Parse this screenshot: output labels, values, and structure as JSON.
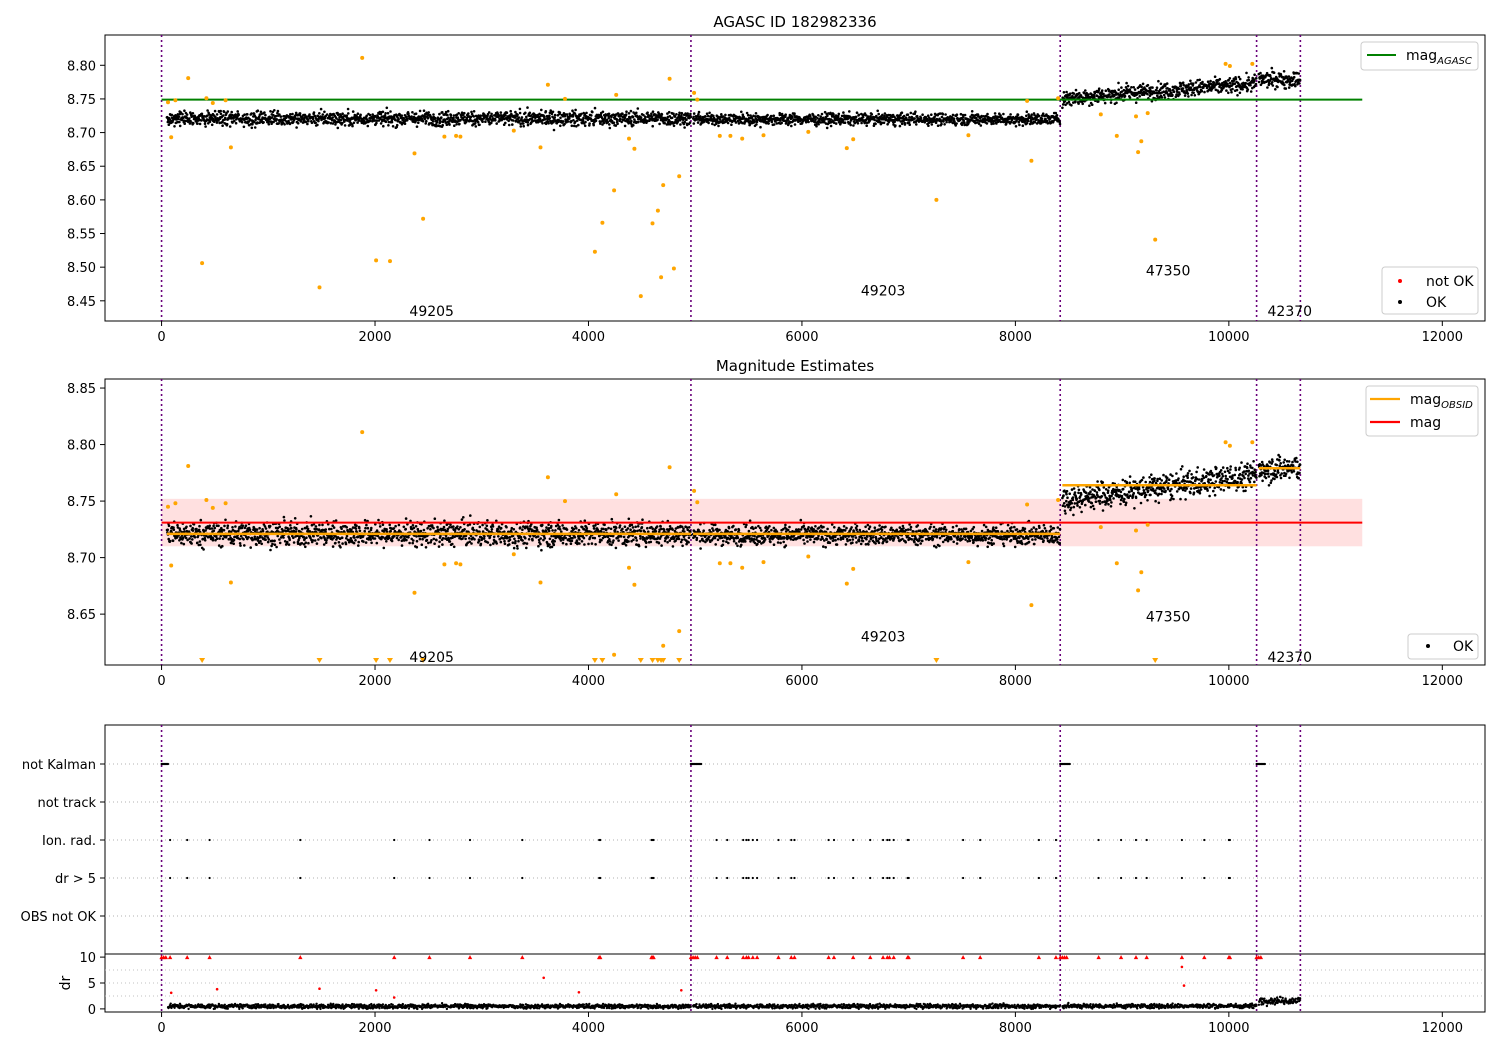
{
  "chart_data": [
    {
      "type": "scatter",
      "title": "AGASC ID 182982336",
      "xlim": [
        -530,
        12400
      ],
      "ylim": [
        8.42,
        8.845
      ],
      "x_ticks": [
        0,
        2000,
        4000,
        6000,
        8000,
        10000,
        12000
      ],
      "y_ticks": [
        8.45,
        8.5,
        8.55,
        8.6,
        8.65,
        8.7,
        8.75,
        8.8
      ],
      "grid": false,
      "observation_boundaries": [
        0,
        4960,
        8420,
        10260,
        10670
      ],
      "obsid_labels": [
        {
          "text": "49205",
          "x": 2250,
          "y": 8.435
        },
        {
          "text": "49203",
          "x": 6480,
          "y": 8.465
        },
        {
          "text": "47350",
          "x": 9150,
          "y": 8.495
        },
        {
          "text": "42370",
          "x": 10290,
          "y": 8.435
        }
      ],
      "reference_lines": [
        {
          "name": "mag_AGASC",
          "y": 8.749,
          "x": [
            0,
            11250
          ],
          "color": "#008000"
        }
      ],
      "segments": [
        {
          "x": [
            50,
            4960
          ],
          "level": 8.721,
          "spread": 0.01
        },
        {
          "x": [
            4980,
            8420
          ],
          "level": 8.72,
          "spread": 0.008
        },
        {
          "x": [
            8440,
            10260
          ],
          "level": 8.763,
          "spread": 0.011
        },
        {
          "x": [
            10280,
            10670
          ],
          "level": 8.779,
          "spread": 0.011
        }
      ],
      "series": [
        {
          "name": "not OK",
          "marker": "dot",
          "color": "#ff0000",
          "points": []
        },
        {
          "name": "OK",
          "marker": "dot",
          "color": "#000000",
          "points": "dense per-frame track following segments"
        },
        {
          "name": "flagged",
          "marker": "dot",
          "color": "#ffa500",
          "points": [
            [
              60,
              8.745
            ],
            [
              90,
              8.693
            ],
            [
              130,
              8.748
            ],
            [
              250,
              8.781
            ],
            [
              380,
              8.506
            ],
            [
              420,
              8.751
            ],
            [
              480,
              8.744
            ],
            [
              600,
              8.748
            ],
            [
              650,
              8.678
            ],
            [
              1480,
              8.47
            ],
            [
              1880,
              8.811
            ],
            [
              2010,
              8.51
            ],
            [
              2140,
              8.509
            ],
            [
              2370,
              8.669
            ],
            [
              2450,
              8.572
            ],
            [
              2650,
              8.694
            ],
            [
              2760,
              8.695
            ],
            [
              2800,
              8.694
            ],
            [
              3300,
              8.703
            ],
            [
              3550,
              8.678
            ],
            [
              3620,
              8.771
            ],
            [
              3780,
              8.75
            ],
            [
              4060,
              8.523
            ],
            [
              4130,
              8.566
            ],
            [
              4240,
              8.614
            ],
            [
              4260,
              8.756
            ],
            [
              4380,
              8.691
            ],
            [
              4430,
              8.676
            ],
            [
              4490,
              8.457
            ],
            [
              4600,
              8.565
            ],
            [
              4650,
              8.584
            ],
            [
              4680,
              8.485
            ],
            [
              4700,
              8.622
            ],
            [
              4760,
              8.78
            ],
            [
              4800,
              8.498
            ],
            [
              4850,
              8.635
            ],
            [
              4990,
              8.759
            ],
            [
              5020,
              8.749
            ],
            [
              5230,
              8.695
            ],
            [
              5330,
              8.695
            ],
            [
              5440,
              8.691
            ],
            [
              5640,
              8.696
            ],
            [
              6060,
              8.701
            ],
            [
              6420,
              8.677
            ],
            [
              6480,
              8.69
            ],
            [
              7260,
              8.6
            ],
            [
              7560,
              8.696
            ],
            [
              8110,
              8.747
            ],
            [
              8150,
              8.658
            ],
            [
              8400,
              8.751
            ],
            [
              8800,
              8.727
            ],
            [
              8950,
              8.695
            ],
            [
              9150,
              8.671
            ],
            [
              9180,
              8.687
            ],
            [
              9240,
              8.729
            ],
            [
              9310,
              8.541
            ],
            [
              9130,
              8.724
            ],
            [
              9970,
              8.802
            ],
            [
              10010,
              8.799
            ],
            [
              10220,
              8.802
            ]
          ]
        }
      ],
      "legends": [
        {
          "placement": "upper right",
          "entries": [
            {
              "label": "mag",
              "sub": "AGASC",
              "color": "#008000",
              "marker": "line"
            }
          ]
        },
        {
          "placement": "lower right",
          "entries": [
            {
              "label": "not OK",
              "color": "#ff0000",
              "marker": "dot"
            },
            {
              "label": "OK",
              "color": "#000000",
              "marker": "dot"
            }
          ]
        }
      ]
    },
    {
      "type": "scatter",
      "title": "Magnitude Estimates",
      "xlim": [
        -530,
        12400
      ],
      "ylim": [
        8.605,
        8.858
      ],
      "x_ticks": [
        0,
        2000,
        4000,
        6000,
        8000,
        10000,
        12000
      ],
      "y_ticks": [
        8.65,
        8.7,
        8.75,
        8.8,
        8.85
      ],
      "grid": false,
      "observation_boundaries": [
        0,
        4960,
        8420,
        10260,
        10670
      ],
      "obsid_labels": [
        {
          "text": "49205",
          "x": 2250,
          "y": 8.612
        },
        {
          "text": "49203",
          "x": 6480,
          "y": 8.63
        },
        {
          "text": "47350",
          "x": 9150,
          "y": 8.648
        },
        {
          "text": "42370",
          "x": 10290,
          "y": 8.612
        }
      ],
      "band": {
        "x": [
          0,
          11250
        ],
        "y": [
          8.71,
          8.752
        ],
        "color": "#ffe0e0"
      },
      "reference_lines": [
        {
          "name": "mag",
          "y": 8.731,
          "x": [
            0,
            11250
          ],
          "color": "#ff0000"
        }
      ],
      "obsid_lines": [
        {
          "x": [
            50,
            4960
          ],
          "y": 8.721
        },
        {
          "x": [
            4980,
            8420
          ],
          "y": 8.721
        },
        {
          "x": [
            8440,
            10260
          ],
          "y": 8.764
        },
        {
          "x": [
            10280,
            10670
          ],
          "y": 8.779
        }
      ],
      "out_of_range_markers": [
        380,
        1480,
        2010,
        2140,
        2450,
        4060,
        4130,
        4490,
        4600,
        4650,
        4680,
        4700,
        4850,
        7260,
        9310
      ],
      "series": [
        {
          "name": "OK",
          "marker": "dot",
          "color": "#000000",
          "points": "dense per-frame track following obsid_lines"
        },
        {
          "name": "flagged",
          "marker": "dot",
          "color": "#ffa500",
          "points": "same as panel 1 within y range"
        }
      ],
      "legends": [
        {
          "placement": "upper right",
          "entries": [
            {
              "label": "mag",
              "sub": "OBSID",
              "color": "#ffa500",
              "marker": "line"
            },
            {
              "label": "mag",
              "sub": "",
              "color": "#ff0000",
              "marker": "line"
            }
          ]
        },
        {
          "placement": "lower right",
          "entries": [
            {
              "label": "OK",
              "color": "#000000",
              "marker": "dot"
            }
          ]
        }
      ]
    },
    {
      "type": "scatter",
      "title": "",
      "xlim": [
        -530,
        12400
      ],
      "categories": [
        "not Kalman",
        "not track",
        "Ion. rad.",
        "dr > 5",
        "OBS not OK"
      ],
      "observation_boundaries": [
        0,
        4960,
        8420,
        10260,
        10670
      ],
      "not_kalman_x": [
        [
          0,
          60
        ],
        [
          4960,
          5060
        ],
        [
          8420,
          8510
        ],
        [
          10260,
          10340
        ]
      ],
      "flag_x": [
        80,
        240,
        450,
        1300,
        2180,
        2510,
        2890,
        3380,
        4100,
        4110,
        4590,
        4600,
        4610,
        5200,
        5300,
        5450,
        5480,
        5500,
        5540,
        5580,
        5780,
        5900,
        5930,
        6250,
        6300,
        6480,
        6640,
        6760,
        6800,
        6820,
        6860,
        6990,
        7000,
        7510,
        7670,
        8220,
        8380,
        8780,
        8990,
        9130,
        9230,
        9560,
        9770,
        10000,
        10010
      ],
      "grid": "horizontal dotted"
    },
    {
      "type": "scatter",
      "title": "",
      "ylabel": "dr",
      "xlim": [
        -530,
        12400
      ],
      "ylim": [
        -0.6,
        10.6
      ],
      "x_ticks": [
        0,
        2000,
        4000,
        6000,
        8000,
        10000,
        12000
      ],
      "y_ticks": [
        0,
        5,
        10
      ],
      "observation_boundaries": [
        0,
        4960,
        8420,
        10260,
        10670
      ],
      "capped_value": 10,
      "dr_outliers": [
        [
          90,
          3.1
        ],
        [
          520,
          3.8
        ],
        [
          1480,
          3.9
        ],
        [
          2010,
          3.6
        ],
        [
          2180,
          2.2
        ],
        [
          3580,
          6.0
        ],
        [
          3910,
          3.2
        ],
        [
          4870,
          3.6
        ],
        [
          9560,
          8.1
        ],
        [
          9580,
          4.5
        ]
      ],
      "series": [
        {
          "name": "dr",
          "marker": "dot",
          "color": "#000000",
          "points": "dense track near 0.5, ~1.6 after 10260"
        },
        {
          "name": "dr capped",
          "marker": "triangle",
          "color": "#ff0000",
          "points": "flag_x values at 10"
        }
      ]
    }
  ]
}
